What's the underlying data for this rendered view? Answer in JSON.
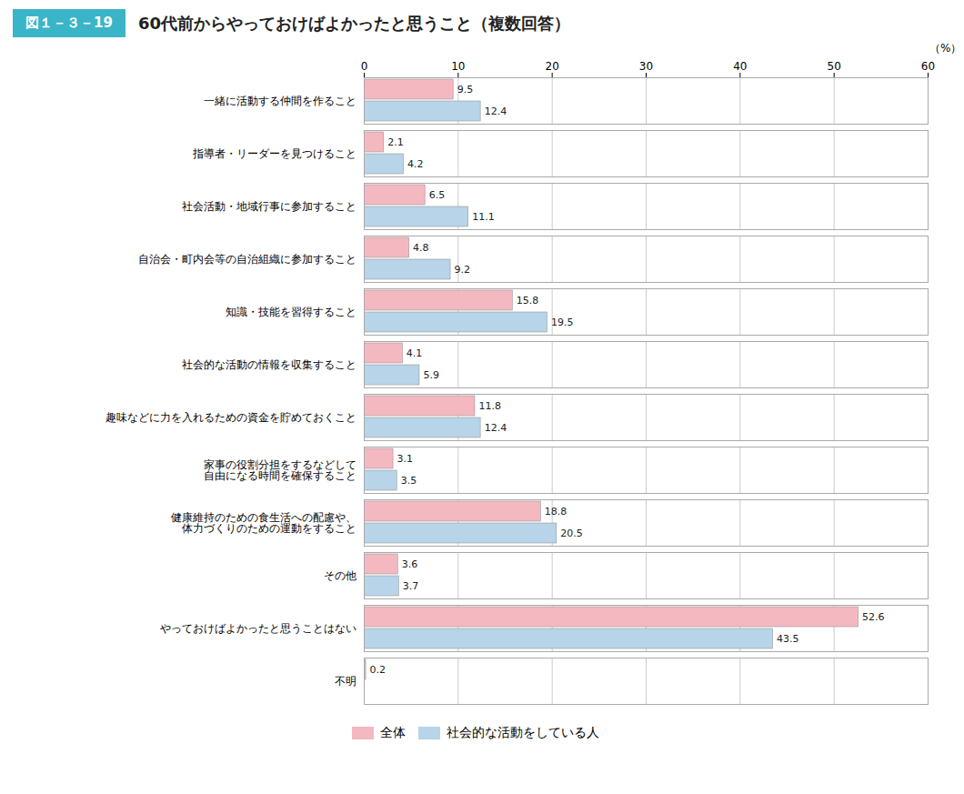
{
  "chart_data": {
    "type": "bar",
    "orientation": "horizontal",
    "title": "60代前からやっておけばよかったと思うこと（複数回答）",
    "subtitle": "図１－３－19",
    "xlabel": "（%）",
    "categories": [
      "一緒に活動する仲間を作ること",
      "指導者・リーダーを見つけること",
      "社会活動・地域行事に参加すること",
      "自治会・町内会等の自治組織に参加すること",
      "知識・技能を習得すること",
      "社会的な活動の情報を収集すること",
      "趣味などに力を入れるための資金を貯めておくこと",
      "家事の役割分担をするなどして\n自由になる時間を確保すること",
      "健康維持のための食生活への配慮や、\n体力づくりのための運動をすること",
      "その他",
      "やっておけばよかったと思うことはない",
      "不明"
    ],
    "series": [
      {
        "name": "全体",
        "color": "#f4b8c1",
        "values": [
          9.5,
          2.1,
          6.5,
          4.8,
          15.8,
          4.1,
          11.8,
          3.1,
          18.8,
          3.6,
          52.6,
          0.2
        ],
        "value_labels": [
          "9.5",
          "2.1",
          "6.5",
          "4.8",
          "15.8",
          "4.1",
          "11.8",
          "3.1",
          "18.8",
          "3.6",
          "52.6",
          "0.2"
        ]
      },
      {
        "name": "社会的な活動をしている人",
        "color": "#b8d4e8",
        "values": [
          12.4,
          4.2,
          11.1,
          9.2,
          19.5,
          5.9,
          12.4,
          3.5,
          20.5,
          3.7,
          43.5,
          0.0
        ],
        "value_labels": [
          "12.4",
          "4.2",
          "11.1",
          "9.2",
          "19.5",
          "5.9",
          "12.4",
          "3.5",
          "20.5",
          "3.7",
          "43.5",
          null
        ]
      }
    ],
    "xlim": [
      0,
      60
    ],
    "xticks": [
      0,
      10,
      20,
      30,
      40,
      50,
      60
    ],
    "grid": true,
    "legend": "bottom",
    "data_labels": true
  }
}
